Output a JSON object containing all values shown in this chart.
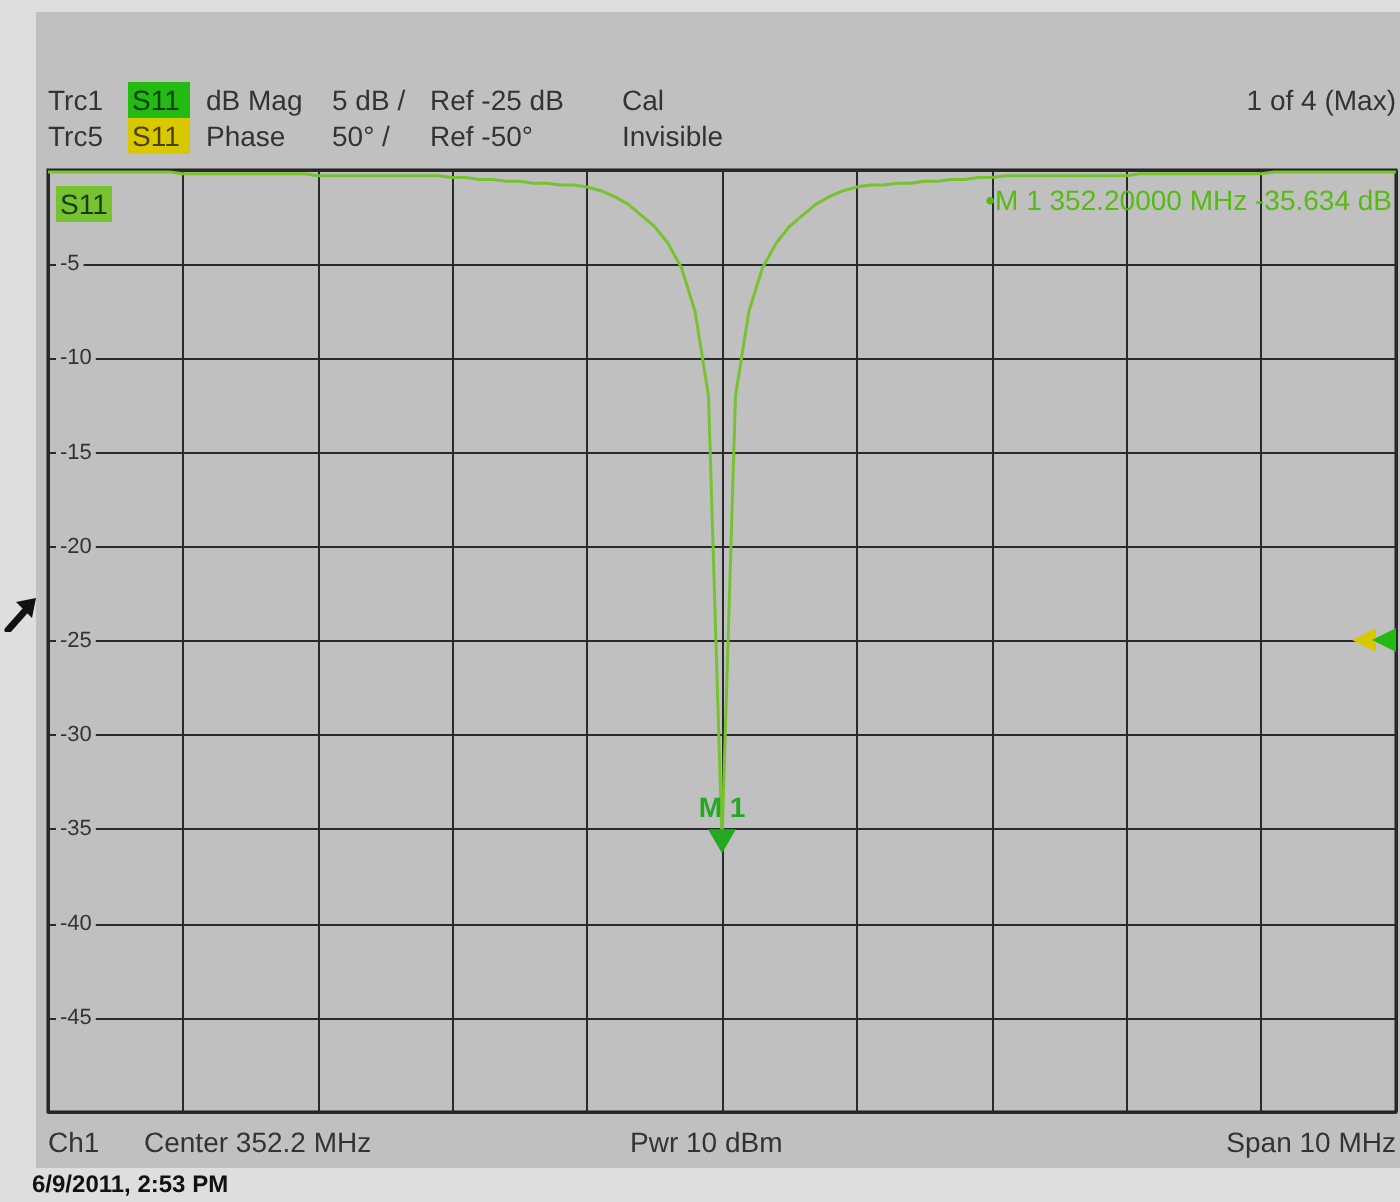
{
  "chart_data": {
    "type": "line",
    "annotations": [
      "Trc1",
      "S11",
      "dB Mag",
      "5 dB /",
      "Ref -25 dB",
      "Cal",
      "Trc5",
      "S11",
      "Phase",
      "50° /",
      "Ref -50°",
      "Invisible",
      "1 of 4 (Max)",
      "•M 1  352.20000 MHz  -35.634 dB",
      "Ch1",
      "Center  352.2 MHz",
      "Pwr  10 dBm",
      "Span  10 MHz",
      "6/9/2011, 2:53 PM",
      {
        "text": "M 1",
        "y": -35.634
      }
    ],
    "categories": [
      null,
      null,
      null,
      null,
      null,
      null,
      null,
      null,
      null,
      null,
      null,
      null,
      null,
      null,
      null,
      null,
      null,
      null,
      null,
      null,
      null,
      null,
      null,
      null,
      null,
      null,
      null,
      null,
      null,
      null,
      null,
      null,
      null,
      null,
      null,
      null,
      null,
      null,
      null,
      null,
      null,
      null,
      null,
      null,
      null,
      null,
      null,
      null,
      null,
      null,
      null,
      null,
      null,
      null,
      null,
      null,
      null,
      null,
      null,
      null,
      null,
      null,
      null,
      null,
      null,
      null,
      null,
      null,
      null,
      null,
      null,
      null,
      null,
      null,
      null,
      null,
      null,
      null,
      null,
      null,
      null,
      null,
      null,
      null,
      null,
      null,
      null,
      null,
      null,
      null,
      null,
      null,
      null,
      null,
      null,
      null,
      null,
      null,
      null,
      null,
      null
    ],
    "series": [
      {
        "name": "S11",
        "color": "#77c230",
        "values": [
          -0.1,
          -0.1,
          -0.1,
          -0.1,
          -0.1,
          -0.1,
          -0.1,
          -0.1,
          -0.1,
          -0.1,
          -0.2,
          -0.2,
          -0.2,
          -0.2,
          -0.2,
          -0.2,
          -0.2,
          -0.2,
          -0.2,
          -0.2,
          -0.3,
          -0.3,
          -0.3,
          -0.3,
          -0.3,
          -0.3,
          -0.3,
          -0.3,
          -0.3,
          -0.3,
          -0.4,
          -0.4,
          -0.5,
          -0.5,
          -0.6,
          -0.6,
          -0.7,
          -0.7,
          -0.8,
          -0.8,
          -0.9,
          -1.1,
          -1.4,
          -1.8,
          -2.4,
          -3,
          -3.9,
          -5.2,
          -7.5,
          -12,
          -35.634,
          -12,
          -7.5,
          -5.2,
          -3.9,
          -3,
          -2.4,
          -1.8,
          -1.4,
          -1.1,
          -0.9,
          -0.8,
          -0.8,
          -0.7,
          -0.7,
          -0.6,
          -0.6,
          -0.5,
          -0.5,
          -0.4,
          -0.4,
          -0.3,
          -0.3,
          -0.3,
          -0.3,
          -0.3,
          -0.3,
          -0.3,
          -0.3,
          -0.3,
          -0.3,
          -0.2,
          -0.2,
          -0.2,
          -0.2,
          -0.2,
          -0.2,
          -0.2,
          -0.2,
          -0.2,
          -0.2,
          -0.1,
          -0.1,
          -0.1,
          -0.1,
          -0.1,
          -0.1,
          -0.1,
          -0.1,
          -0.1,
          -0.1
        ]
      }
    ],
    "ylim": [
      -50,
      0
    ],
    "yticks": [
      {
        "value": -50,
        "label": null
      },
      -45,
      -40,
      -35,
      -30,
      -25,
      -20,
      -15,
      -10,
      -5,
      {
        "value": 0,
        "label": null
      }
    ],
    "tick_labels": "y",
    "grid": true
  }
}
